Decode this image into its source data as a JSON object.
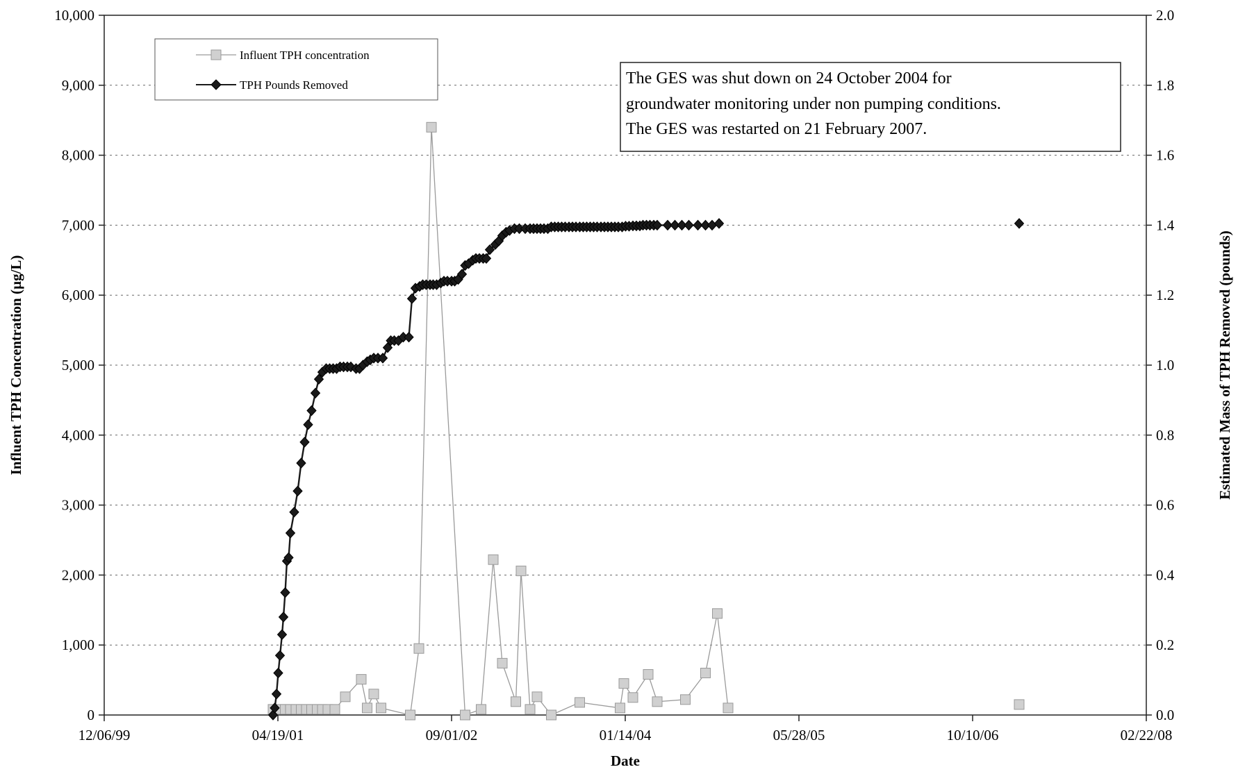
{
  "chart_data": {
    "type": "line",
    "title": "",
    "xlabel": "Date",
    "ylabel": "Influent TPH Concentration (µg/L)",
    "y2label": "Estimated Mass of TPH Removed (pounds)",
    "xlim": [
      "1999-12-06",
      "2008-02-22"
    ],
    "ylim": [
      0,
      10000
    ],
    "y2lim": [
      0,
      2.0
    ],
    "x_ticks": [
      "12/06/99",
      "04/19/01",
      "09/01/02",
      "01/14/04",
      "05/28/05",
      "10/10/06",
      "02/22/08"
    ],
    "y_ticks": [
      "0",
      "1,000",
      "2,000",
      "3,000",
      "4,000",
      "5,000",
      "6,000",
      "7,000",
      "8,000",
      "9,000",
      "10,000"
    ],
    "y2_ticks": [
      "0.0",
      "0.2",
      "0.4",
      "0.6",
      "0.8",
      "1.0",
      "1.2",
      "1.4",
      "1.6",
      "1.8",
      "2.0"
    ],
    "grid": "horizontal dashed",
    "legend_position": "top-left",
    "annotation": [
      "The GES was shut down on 24 October 2004 for",
      "groundwater monitoring under non pumping conditions.",
      "The GES was restarted on 21 February 2007."
    ],
    "series": [
      {
        "name": "Influent TPH concentration",
        "axis": "left",
        "marker": "square",
        "color": "#9a9a9a",
        "fill": "#d0d0d0",
        "x": [
          "2001-04-05",
          "2001-04-25",
          "2001-05-10",
          "2001-05-25",
          "2001-06-10",
          "2001-06-25",
          "2001-07-10",
          "2001-07-25",
          "2001-08-10",
          "2001-08-25",
          "2001-09-10",
          "2001-09-30",
          "2001-10-30",
          "2001-12-15",
          "2002-01-01",
          "2002-01-20",
          "2002-02-10",
          "2002-05-05",
          "2002-05-30",
          "2002-07-05",
          "2002-10-10",
          "2002-11-25",
          "2002-12-30",
          "2003-01-25",
          "2003-03-05",
          "2003-03-20",
          "2003-04-15",
          "2003-05-05",
          "2003-06-15",
          "2003-09-05",
          "2003-12-30",
          "2004-01-10",
          "2004-02-05",
          "2004-03-20",
          "2004-04-15",
          "2004-07-05",
          "2004-09-01",
          "2004-10-05",
          "2004-11-05",
          "2007-02-21"
        ],
        "y": [
          80,
          80,
          80,
          80,
          80,
          80,
          80,
          80,
          80,
          80,
          80,
          80,
          260,
          510,
          100,
          300,
          100,
          0,
          950,
          8400,
          0,
          80,
          2220,
          740,
          190,
          2060,
          80,
          260,
          0,
          180,
          100,
          450,
          250,
          580,
          190,
          220,
          600,
          1450,
          100,
          150
        ]
      },
      {
        "name": "TPH Pounds Removed",
        "axis": "right",
        "marker": "diamond",
        "color": "#1a1a1a",
        "x": [
          "2001-04-05",
          "2001-04-10",
          "2001-04-15",
          "2001-04-20",
          "2001-04-25",
          "2001-05-01",
          "2001-05-05",
          "2001-05-10",
          "2001-05-15",
          "2001-05-20",
          "2001-05-25",
          "2001-06-05",
          "2001-06-15",
          "2001-06-25",
          "2001-07-05",
          "2001-07-15",
          "2001-07-25",
          "2001-08-05",
          "2001-08-15",
          "2001-08-25",
          "2001-09-05",
          "2001-09-15",
          "2001-09-25",
          "2001-10-05",
          "2001-10-15",
          "2001-10-25",
          "2001-11-05",
          "2001-11-15",
          "2001-11-30",
          "2001-12-10",
          "2001-12-20",
          "2002-01-01",
          "2002-01-10",
          "2002-01-20",
          "2002-02-01",
          "2002-02-15",
          "2002-03-01",
          "2002-03-10",
          "2002-03-20",
          "2002-04-01",
          "2002-04-15",
          "2002-05-01",
          "2002-05-10",
          "2002-05-20",
          "2002-06-01",
          "2002-06-10",
          "2002-06-20",
          "2002-07-01",
          "2002-07-10",
          "2002-07-20",
          "2002-08-01",
          "2002-08-10",
          "2002-08-20",
          "2002-09-01",
          "2002-09-10",
          "2002-09-20",
          "2002-10-01",
          "2002-10-10",
          "2002-10-20",
          "2002-11-01",
          "2002-11-10",
          "2002-11-20",
          "2002-12-01",
          "2002-12-10",
          "2002-12-20",
          "2003-01-05",
          "2003-01-15",
          "2003-01-25",
          "2003-02-05",
          "2003-02-15",
          "2003-03-01",
          "2003-03-15",
          "2003-04-01",
          "2003-04-15",
          "2003-04-25",
          "2003-05-05",
          "2003-05-15",
          "2003-05-25",
          "2003-06-05",
          "2003-06-15",
          "2003-06-25",
          "2003-07-05",
          "2003-07-15",
          "2003-07-25",
          "2003-08-05",
          "2003-08-15",
          "2003-08-25",
          "2003-09-05",
          "2003-09-15",
          "2003-09-25",
          "2003-10-05",
          "2003-10-15",
          "2003-10-25",
          "2003-11-05",
          "2003-11-15",
          "2003-11-25",
          "2003-12-05",
          "2003-12-15",
          "2003-12-25",
          "2004-01-05",
          "2004-01-15",
          "2004-01-25",
          "2004-02-05",
          "2004-02-15",
          "2004-02-25",
          "2004-03-05",
          "2004-03-15",
          "2004-03-25",
          "2004-04-05",
          "2004-04-15",
          "2004-05-15",
          "2004-06-05",
          "2004-06-25",
          "2004-07-15",
          "2004-08-10",
          "2004-09-01",
          "2004-09-20",
          "2004-10-10",
          "2007-02-21"
        ],
        "y": [
          0.0,
          0.02,
          0.06,
          0.12,
          0.17,
          0.23,
          0.28,
          0.35,
          0.44,
          0.45,
          0.52,
          0.58,
          0.64,
          0.72,
          0.78,
          0.83,
          0.87,
          0.92,
          0.96,
          0.98,
          0.99,
          0.99,
          0.99,
          0.99,
          0.995,
          0.995,
          0.995,
          0.995,
          0.99,
          0.99,
          1.0,
          1.01,
          1.015,
          1.02,
          1.02,
          1.02,
          1.05,
          1.07,
          1.07,
          1.07,
          1.08,
          1.08,
          1.19,
          1.22,
          1.225,
          1.23,
          1.23,
          1.23,
          1.23,
          1.23,
          1.235,
          1.24,
          1.24,
          1.24,
          1.24,
          1.245,
          1.26,
          1.285,
          1.29,
          1.3,
          1.305,
          1.305,
          1.305,
          1.305,
          1.33,
          1.345,
          1.355,
          1.37,
          1.38,
          1.385,
          1.39,
          1.39,
          1.39,
          1.39,
          1.39,
          1.39,
          1.39,
          1.39,
          1.39,
          1.395,
          1.395,
          1.395,
          1.395,
          1.395,
          1.395,
          1.395,
          1.395,
          1.395,
          1.395,
          1.395,
          1.395,
          1.395,
          1.395,
          1.395,
          1.395,
          1.395,
          1.395,
          1.395,
          1.395,
          1.395,
          1.397,
          1.397,
          1.398,
          1.398,
          1.398,
          1.4,
          1.4,
          1.4,
          1.4,
          1.4,
          1.4,
          1.4,
          1.4,
          1.4,
          1.4,
          1.4,
          1.4,
          1.405,
          1.405
        ]
      }
    ]
  }
}
